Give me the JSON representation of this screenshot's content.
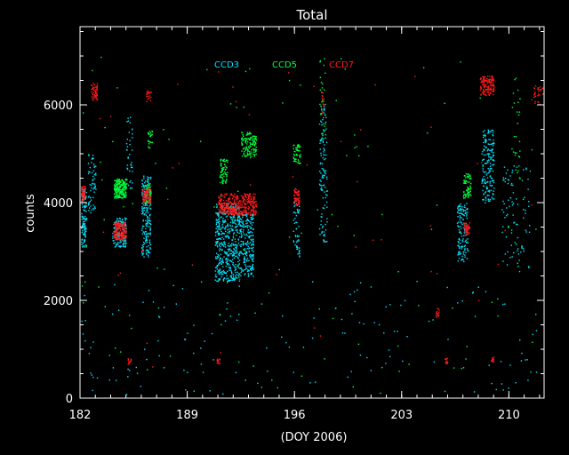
{
  "chart_data": {
    "type": "scatter",
    "title": "Total",
    "xlabel": "(DOY 2006)",
    "ylabel": "counts",
    "xlim": [
      182,
      212.3
    ],
    "ylim": [
      0,
      7600
    ],
    "x_ticks": [
      182,
      189,
      196,
      203,
      210
    ],
    "x_tick_labels": [
      "182",
      "189",
      "196",
      "203",
      "210"
    ],
    "y_ticks": [
      0,
      2000,
      4000,
      6000
    ],
    "y_tick_labels": [
      "0",
      "2000",
      "4000",
      "6000"
    ],
    "background_color": "#000000",
    "axis_color": "#ffffff",
    "grid": false,
    "legend_position": "top-center inside plot",
    "series": [
      {
        "name": "CCD3",
        "color": "#00e5ff",
        "clusters": [
          {
            "x": [
              182.0,
              182.4
            ],
            "y": [
              3100,
              4300
            ],
            "n": 140
          },
          {
            "x": [
              182.5,
              183.0
            ],
            "y": [
              3800,
              5000
            ],
            "n": 60
          },
          {
            "x": [
              184.1,
              185.0
            ],
            "y": [
              3100,
              3700
            ],
            "n": 160
          },
          {
            "x": [
              186.0,
              186.6
            ],
            "y": [
              2900,
              4600
            ],
            "n": 200
          },
          {
            "x": [
              185.0,
              185.4
            ],
            "y": [
              4300,
              5800
            ],
            "n": 40
          },
          {
            "x": [
              190.8,
              192.4
            ],
            "y": [
              2400,
              4000
            ],
            "n": 500
          },
          {
            "x": [
              192.4,
              193.3
            ],
            "y": [
              2500,
              3800
            ],
            "n": 220
          },
          {
            "x": [
              195.9,
              196.3
            ],
            "y": [
              2900,
              4100
            ],
            "n": 60
          },
          {
            "x": [
              197.6,
              198.1
            ],
            "y": [
              3200,
              6000
            ],
            "n": 120
          },
          {
            "x": [
              206.6,
              207.3
            ],
            "y": [
              2800,
              4000
            ],
            "n": 140
          },
          {
            "x": [
              208.2,
              209.0
            ],
            "y": [
              4000,
              5500
            ],
            "n": 180
          },
          {
            "x": [
              209.5,
              211.4
            ],
            "y": [
              2600,
              4800
            ],
            "n": 90
          },
          {
            "x": [
              182.0,
              212.0
            ],
            "y": [
              80,
              2400
            ],
            "n": 160
          }
        ]
      },
      {
        "name": "CCD5",
        "color": "#00ff3c",
        "clusters": [
          {
            "x": [
              184.2,
              185.0
            ],
            "y": [
              4100,
              4500
            ],
            "n": 200
          },
          {
            "x": [
              186.2,
              186.6
            ],
            "y": [
              4000,
              4400
            ],
            "n": 60
          },
          {
            "x": [
              186.4,
              186.7
            ],
            "y": [
              5100,
              5500
            ],
            "n": 25
          },
          {
            "x": [
              191.1,
              191.6
            ],
            "y": [
              4400,
              4900
            ],
            "n": 70
          },
          {
            "x": [
              192.5,
              193.5
            ],
            "y": [
              4950,
              5450
            ],
            "n": 130
          },
          {
            "x": [
              195.9,
              196.4
            ],
            "y": [
              4800,
              5200
            ],
            "n": 50
          },
          {
            "x": [
              207.0,
              207.5
            ],
            "y": [
              4100,
              4600
            ],
            "n": 70
          },
          {
            "x": [
              210.1,
              210.7
            ],
            "y": [
              4400,
              6600
            ],
            "n": 30
          },
          {
            "x": [
              197.6,
              198.0
            ],
            "y": [
              5200,
              7000
            ],
            "n": 30
          },
          {
            "x": [
              182.0,
              212.0
            ],
            "y": [
              200,
              7000
            ],
            "n": 110
          }
        ]
      },
      {
        "name": "CCD7",
        "color": "#ff1a1a",
        "clusters": [
          {
            "x": [
              182.0,
              182.3
            ],
            "y": [
              4000,
              4350
            ],
            "n": 60
          },
          {
            "x": [
              182.7,
              183.1
            ],
            "y": [
              6100,
              6450
            ],
            "n": 50
          },
          {
            "x": [
              184.2,
              185.0
            ],
            "y": [
              3250,
              3600
            ],
            "n": 180
          },
          {
            "x": [
              186.0,
              186.6
            ],
            "y": [
              4000,
              4300
            ],
            "n": 80
          },
          {
            "x": [
              186.3,
              186.6
            ],
            "y": [
              6050,
              6350
            ],
            "n": 20
          },
          {
            "x": [
              191.0,
              193.5
            ],
            "y": [
              3750,
              4200
            ],
            "n": 380
          },
          {
            "x": [
              195.9,
              196.3
            ],
            "y": [
              3950,
              4300
            ],
            "n": 60
          },
          {
            "x": [
              197.7,
              197.9
            ],
            "y": [
              5800,
              6300
            ],
            "n": 15
          },
          {
            "x": [
              207.0,
              207.4
            ],
            "y": [
              3350,
              3600
            ],
            "n": 50
          },
          {
            "x": [
              208.1,
              209.0
            ],
            "y": [
              6200,
              6600
            ],
            "n": 140
          },
          {
            "x": [
              205.2,
              205.4
            ],
            "y": [
              1650,
              1850
            ],
            "n": 15
          },
          {
            "x": [
              190.9,
              191.1
            ],
            "y": [
              720,
              820
            ],
            "n": 15
          },
          {
            "x": [
              185.1,
              185.3
            ],
            "y": [
              700,
              850
            ],
            "n": 12
          },
          {
            "x": [
              205.8,
              206.0
            ],
            "y": [
              720,
              830
            ],
            "n": 12
          },
          {
            "x": [
              208.8,
              209.0
            ],
            "y": [
              750,
              850
            ],
            "n": 12
          },
          {
            "x": [
              211.6,
              212.2
            ],
            "y": [
              6000,
              6400
            ],
            "n": 30
          },
          {
            "x": [
              182.0,
              212.0
            ],
            "y": [
              300,
              6800
            ],
            "n": 50
          }
        ]
      }
    ]
  }
}
